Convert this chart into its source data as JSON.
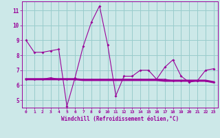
{
  "xlabel": "Windchill (Refroidissement éolien,°C)",
  "background_color": "#cce8e8",
  "grid_color": "#99cccc",
  "line_color": "#990099",
  "x_values": [
    0,
    1,
    2,
    3,
    4,
    5,
    6,
    7,
    8,
    9,
    10,
    11,
    12,
    13,
    14,
    15,
    16,
    17,
    18,
    19,
    20,
    21,
    22,
    23
  ],
  "series1": [
    9.0,
    8.2,
    8.2,
    8.3,
    8.4,
    4.6,
    6.5,
    8.6,
    10.2,
    11.3,
    8.7,
    5.3,
    6.6,
    6.6,
    7.0,
    7.0,
    6.4,
    7.2,
    7.7,
    6.6,
    6.2,
    6.3,
    7.0,
    7.1
  ],
  "series2": [
    6.4,
    6.4,
    6.4,
    6.5,
    6.4,
    6.4,
    6.4,
    6.4,
    6.4,
    6.4,
    6.4,
    6.4,
    6.4,
    6.4,
    6.4,
    6.4,
    6.4,
    6.4,
    6.3,
    6.3,
    6.3,
    6.3,
    6.3,
    6.2
  ],
  "series3": [
    6.4,
    6.4,
    6.4,
    6.4,
    6.4,
    6.4,
    6.4,
    6.35,
    6.35,
    6.35,
    6.35,
    6.35,
    6.35,
    6.35,
    6.35,
    6.35,
    6.35,
    6.3,
    6.3,
    6.3,
    6.3,
    6.3,
    6.3,
    6.2
  ],
  "ylim": [
    4.5,
    11.6
  ],
  "yticks": [
    5,
    6,
    7,
    8,
    9,
    10,
    11
  ],
  "xticks": [
    0,
    1,
    2,
    3,
    4,
    5,
    6,
    7,
    8,
    9,
    10,
    11,
    12,
    13,
    14,
    15,
    16,
    17,
    18,
    19,
    20,
    21,
    22,
    23
  ]
}
